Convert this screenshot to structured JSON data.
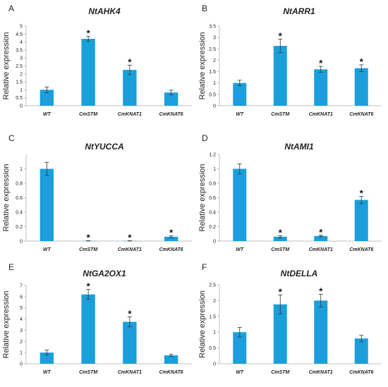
{
  "figure": {
    "panels": [
      {
        "letter": "A",
        "title": "NtAHK4"
      },
      {
        "letter": "B",
        "title": "NtARR1"
      },
      {
        "letter": "C",
        "title": "NtYUCCA"
      },
      {
        "letter": "D",
        "title": "NtAMI1"
      },
      {
        "letter": "E",
        "title": "NtGA2OX1"
      },
      {
        "letter": "F",
        "title": "NtDELLA"
      }
    ]
  },
  "colors": {
    "bar": "#1a9fdc",
    "axis": "#bfbfbf",
    "text": "#222222"
  },
  "chart_data": [
    {
      "type": "bar",
      "panel": "A",
      "title": "NtAHK4",
      "xlabel": "",
      "ylabel": "Relative expression",
      "categories": [
        "WT",
        "CmSTM",
        "CmKNAT1",
        "CmKNAT6"
      ],
      "values": [
        1.0,
        4.2,
        2.25,
        0.83
      ],
      "errors": [
        0.18,
        0.15,
        0.3,
        0.15
      ],
      "significant": [
        false,
        true,
        true,
        false
      ],
      "significance_marker": "*",
      "ylim": [
        0,
        5
      ],
      "yticks": [
        "0",
        "0.5",
        "1",
        "1.5",
        "2",
        "2.5",
        "3",
        "3.5",
        "4",
        "4.5",
        "5"
      ]
    },
    {
      "type": "bar",
      "panel": "B",
      "title": "NtARR1",
      "xlabel": "",
      "ylabel": "Relative expression",
      "categories": [
        "WT",
        "CmSTM",
        "CmKNAT1",
        "CmKNAT6"
      ],
      "values": [
        1.0,
        2.63,
        1.6,
        1.65
      ],
      "errors": [
        0.12,
        0.3,
        0.13,
        0.15
      ],
      "significant": [
        false,
        true,
        true,
        true
      ],
      "significance_marker": "*",
      "ylim": [
        0,
        3.5
      ],
      "yticks": [
        "0",
        "0.5",
        "1",
        "1.5",
        "2",
        "2.5",
        "3",
        "3.5"
      ]
    },
    {
      "type": "bar",
      "panel": "C",
      "title": "NtYUCCA",
      "xlabel": "",
      "ylabel": "Relative expression",
      "categories": [
        "WT",
        "CmSTM",
        "CmKNAT1",
        "CmKNAT6"
      ],
      "values": [
        1.0,
        0.003,
        0.003,
        0.06
      ],
      "errors": [
        0.09,
        0.002,
        0.002,
        0.015
      ],
      "significant": [
        false,
        true,
        true,
        true
      ],
      "significance_marker": "*",
      "ylim": [
        0,
        1.2
      ],
      "yticks": [
        "0",
        "0.2",
        "0.4",
        "0.6",
        "0.8",
        "1"
      ]
    },
    {
      "type": "bar",
      "panel": "D",
      "title": "NtAMI1",
      "xlabel": "",
      "ylabel": "Relative expression",
      "categories": [
        "WT",
        "CmSTM",
        "CmKNAT1",
        "CmKNAT6"
      ],
      "values": [
        1.0,
        0.06,
        0.07,
        0.57
      ],
      "errors": [
        0.07,
        0.015,
        0.01,
        0.05
      ],
      "significant": [
        false,
        true,
        true,
        true
      ],
      "significance_marker": "*",
      "ylim": [
        0,
        1.2
      ],
      "yticks": [
        "0",
        "0.2",
        "0.4",
        "0.6",
        "0.8",
        "1",
        "1.2"
      ]
    },
    {
      "type": "bar",
      "panel": "E",
      "title": "NtGA2OX1",
      "xlabel": "",
      "ylabel": "Relative expression",
      "categories": [
        "WT",
        "CmSTM",
        "CmKNAT1",
        "CmKNAT6"
      ],
      "values": [
        1.0,
        6.2,
        3.75,
        0.75
      ],
      "errors": [
        0.22,
        0.45,
        0.45,
        0.1
      ],
      "significant": [
        false,
        true,
        true,
        false
      ],
      "significance_marker": "*",
      "ylim": [
        0,
        7
      ],
      "yticks": [
        "0",
        "1",
        "2",
        "3",
        "4",
        "5",
        "6",
        "7"
      ]
    },
    {
      "type": "bar",
      "panel": "F",
      "title": "NtDELLA",
      "xlabel": "",
      "ylabel": "Relative expression",
      "categories": [
        "WT",
        "CmSTM",
        "CmKNAT1",
        "CmKNAT6"
      ],
      "values": [
        1.0,
        1.88,
        2.0,
        0.8
      ],
      "errors": [
        0.15,
        0.3,
        0.2,
        0.1
      ],
      "significant": [
        false,
        true,
        true,
        false
      ],
      "significance_marker": "*",
      "ylim": [
        0,
        2.5
      ],
      "yticks": [
        "0",
        "0.5",
        "1",
        "1.5",
        "2",
        "2.5"
      ]
    }
  ]
}
